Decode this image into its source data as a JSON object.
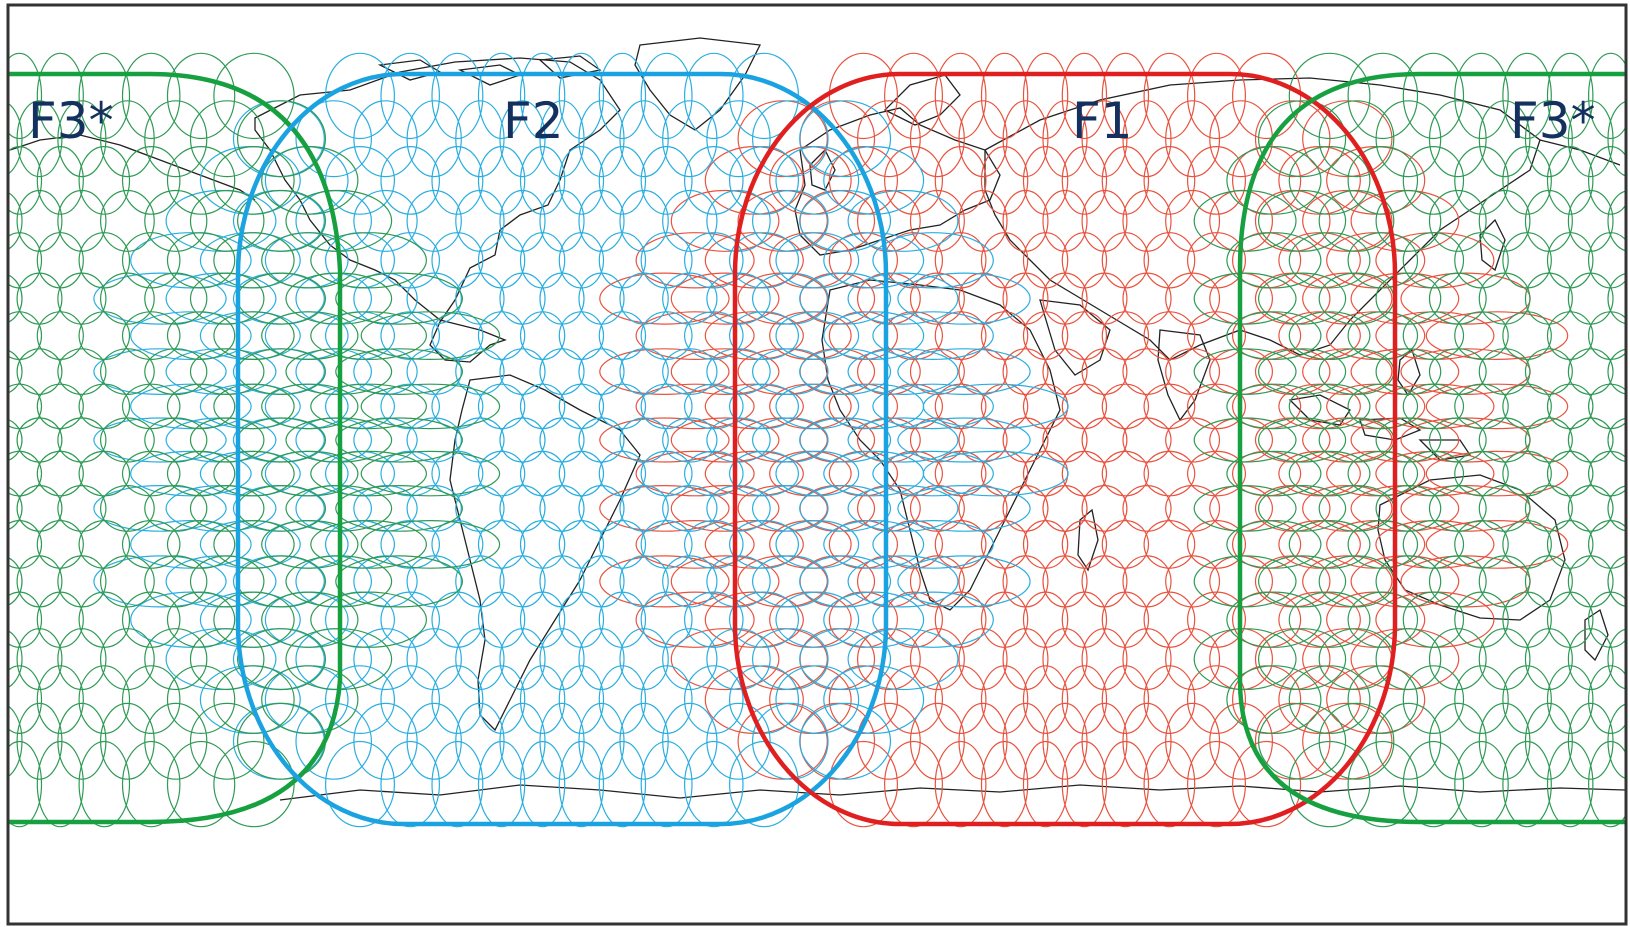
{
  "map": {
    "regions": [
      {
        "id": "F1",
        "label": "F1",
        "color": "#e02020",
        "beam_color": "#e8533f"
      },
      {
        "id": "F2",
        "label": "F2",
        "color": "#1aa3e0",
        "beam_color": "#2aaee0"
      },
      {
        "id": "F3",
        "label": "F3*",
        "color": "#16a040",
        "beam_color": "#2f9a55"
      }
    ],
    "label_color": "#14305e",
    "coastline_color": "#222222",
    "frame_color": "#333333"
  }
}
